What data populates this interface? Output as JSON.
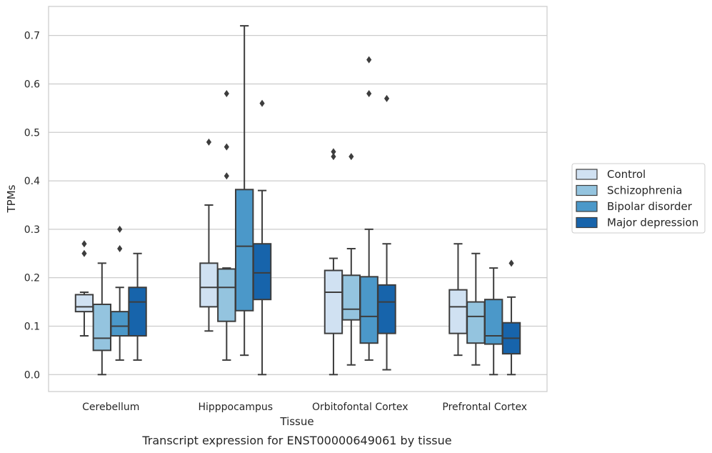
{
  "chart_data": {
    "type": "box",
    "title": "",
    "caption": "Transcript expression for ENST00000649061 by tissue",
    "xlabel": "Tissue",
    "ylabel": "TPMs",
    "ylim": [
      -0.035,
      0.76
    ],
    "yticks": [
      "0.0",
      "0.1",
      "0.2",
      "0.3",
      "0.4",
      "0.5",
      "0.6",
      "0.7"
    ],
    "grid": "horizontal",
    "legend_position": "right",
    "categories": [
      "Cerebellum",
      "Hipppocampus",
      "Orbitofontal Cortex",
      "Prefrontal Cortex"
    ],
    "series": [
      {
        "name": "Control",
        "color": "#d0e1f2",
        "boxes": [
          {
            "whisker_low": 0.08,
            "q1": 0.13,
            "median": 0.14,
            "q3": 0.165,
            "whisker_high": 0.17,
            "outliers": [
              0.25,
              0.27
            ]
          },
          {
            "whisker_low": 0.09,
            "q1": 0.14,
            "median": 0.18,
            "q3": 0.23,
            "whisker_high": 0.35,
            "outliers": [
              0.48
            ]
          },
          {
            "whisker_low": 0.0,
            "q1": 0.085,
            "median": 0.17,
            "q3": 0.215,
            "whisker_high": 0.24,
            "outliers": [
              0.45,
              0.46
            ]
          },
          {
            "whisker_low": 0.04,
            "q1": 0.085,
            "median": 0.14,
            "q3": 0.175,
            "whisker_high": 0.27,
            "outliers": []
          }
        ]
      },
      {
        "name": "Schizophrenia",
        "color": "#94c4df",
        "boxes": [
          {
            "whisker_low": 0.0,
            "q1": 0.05,
            "median": 0.075,
            "q3": 0.145,
            "whisker_high": 0.23,
            "outliers": []
          },
          {
            "whisker_low": 0.03,
            "q1": 0.11,
            "median": 0.18,
            "q3": 0.218,
            "whisker_high": 0.22,
            "outliers": [
              0.41,
              0.47,
              0.58
            ]
          },
          {
            "whisker_low": 0.02,
            "q1": 0.113,
            "median": 0.135,
            "q3": 0.205,
            "whisker_high": 0.26,
            "outliers": [
              0.45
            ]
          },
          {
            "whisker_low": 0.02,
            "q1": 0.065,
            "median": 0.12,
            "q3": 0.15,
            "whisker_high": 0.25,
            "outliers": []
          }
        ]
      },
      {
        "name": "Bipolar disorder",
        "color": "#4b98c9",
        "boxes": [
          {
            "whisker_low": 0.03,
            "q1": 0.08,
            "median": 0.1,
            "q3": 0.13,
            "whisker_high": 0.18,
            "outliers": [
              0.26,
              0.3
            ]
          },
          {
            "whisker_low": 0.04,
            "q1": 0.132,
            "median": 0.265,
            "q3": 0.382,
            "whisker_high": 0.72,
            "outliers": []
          },
          {
            "whisker_low": 0.03,
            "q1": 0.065,
            "median": 0.12,
            "q3": 0.202,
            "whisker_high": 0.3,
            "outliers": [
              0.58,
              0.65
            ]
          },
          {
            "whisker_low": 0.0,
            "q1": 0.063,
            "median": 0.08,
            "q3": 0.155,
            "whisker_high": 0.22,
            "outliers": []
          }
        ]
      },
      {
        "name": "Major depression",
        "color": "#1764ab",
        "boxes": [
          {
            "whisker_low": 0.03,
            "q1": 0.08,
            "median": 0.15,
            "q3": 0.18,
            "whisker_high": 0.25,
            "outliers": []
          },
          {
            "whisker_low": 0.0,
            "q1": 0.155,
            "median": 0.21,
            "q3": 0.27,
            "whisker_high": 0.38,
            "outliers": [
              0.56
            ]
          },
          {
            "whisker_low": 0.01,
            "q1": 0.085,
            "median": 0.15,
            "q3": 0.185,
            "whisker_high": 0.27,
            "outliers": [
              0.57
            ]
          },
          {
            "whisker_low": 0.0,
            "q1": 0.043,
            "median": 0.075,
            "q3": 0.107,
            "whisker_high": 0.16,
            "outliers": [
              0.23
            ]
          }
        ]
      }
    ]
  }
}
